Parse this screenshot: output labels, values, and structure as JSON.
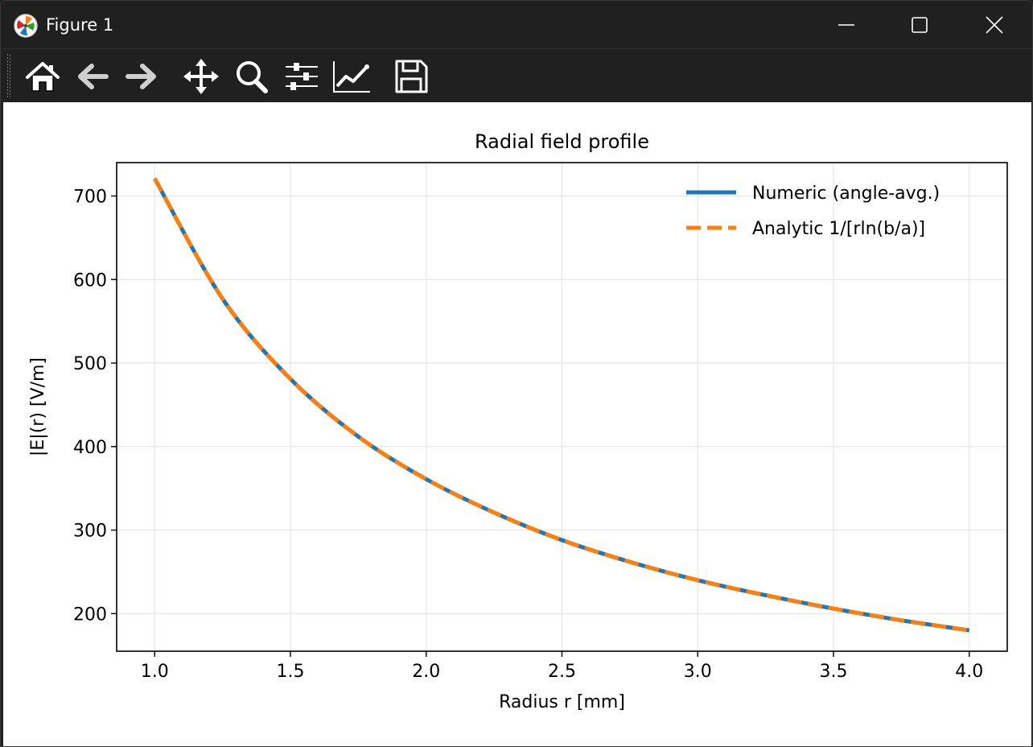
{
  "window": {
    "title": "Figure 1",
    "controls": [
      "minimize-icon",
      "maximize-icon",
      "close-icon"
    ]
  },
  "toolbar": {
    "buttons": [
      {
        "name": "home",
        "icon": "home-icon"
      },
      {
        "name": "back",
        "icon": "arrow-left-icon"
      },
      {
        "name": "forward",
        "icon": "arrow-right-icon"
      },
      {
        "name": "pan",
        "icon": "move-icon"
      },
      {
        "name": "zoom",
        "icon": "magnifier-icon"
      },
      {
        "name": "subplots",
        "icon": "sliders-icon"
      },
      {
        "name": "customize",
        "icon": "line-chart-icon"
      },
      {
        "name": "save",
        "icon": "floppy-disk-icon"
      }
    ]
  },
  "colors": {
    "titlebar": "#202020",
    "numeric_series": "#1f77b4",
    "analytic_series": "#ff7f0e",
    "grid": "#e5e5e5"
  },
  "chart_data": {
    "type": "line",
    "title": "Radial field profile",
    "xlabel": "Radius r [mm]",
    "ylabel": "|E|(r) [V/m]",
    "xlim": [
      0.86,
      4.14
    ],
    "ylim": [
      155,
      740
    ],
    "xticks": [
      "1.0",
      "1.5",
      "2.0",
      "2.5",
      "3.0",
      "3.5",
      "4.0"
    ],
    "yticks": [
      "200",
      "300",
      "400",
      "500",
      "600",
      "700"
    ],
    "grid": true,
    "legend_position": "upper right",
    "x": [
      1.0,
      1.25,
      1.5,
      1.75,
      2.0,
      2.25,
      2.5,
      2.75,
      3.0,
      3.25,
      3.5,
      3.75,
      4.0
    ],
    "series": [
      {
        "name": "Numeric (angle-avg.)",
        "style": "solid",
        "values": [
          721,
          577,
          481,
          412,
          361,
          321,
          288,
          262,
          240,
          222,
          206,
          192,
          180
        ]
      },
      {
        "name": "Analytic 1/[rln(b/a)]",
        "style": "dashed",
        "values": [
          721,
          577,
          481,
          412,
          361,
          321,
          288,
          262,
          240,
          222,
          206,
          192,
          180
        ]
      }
    ]
  }
}
